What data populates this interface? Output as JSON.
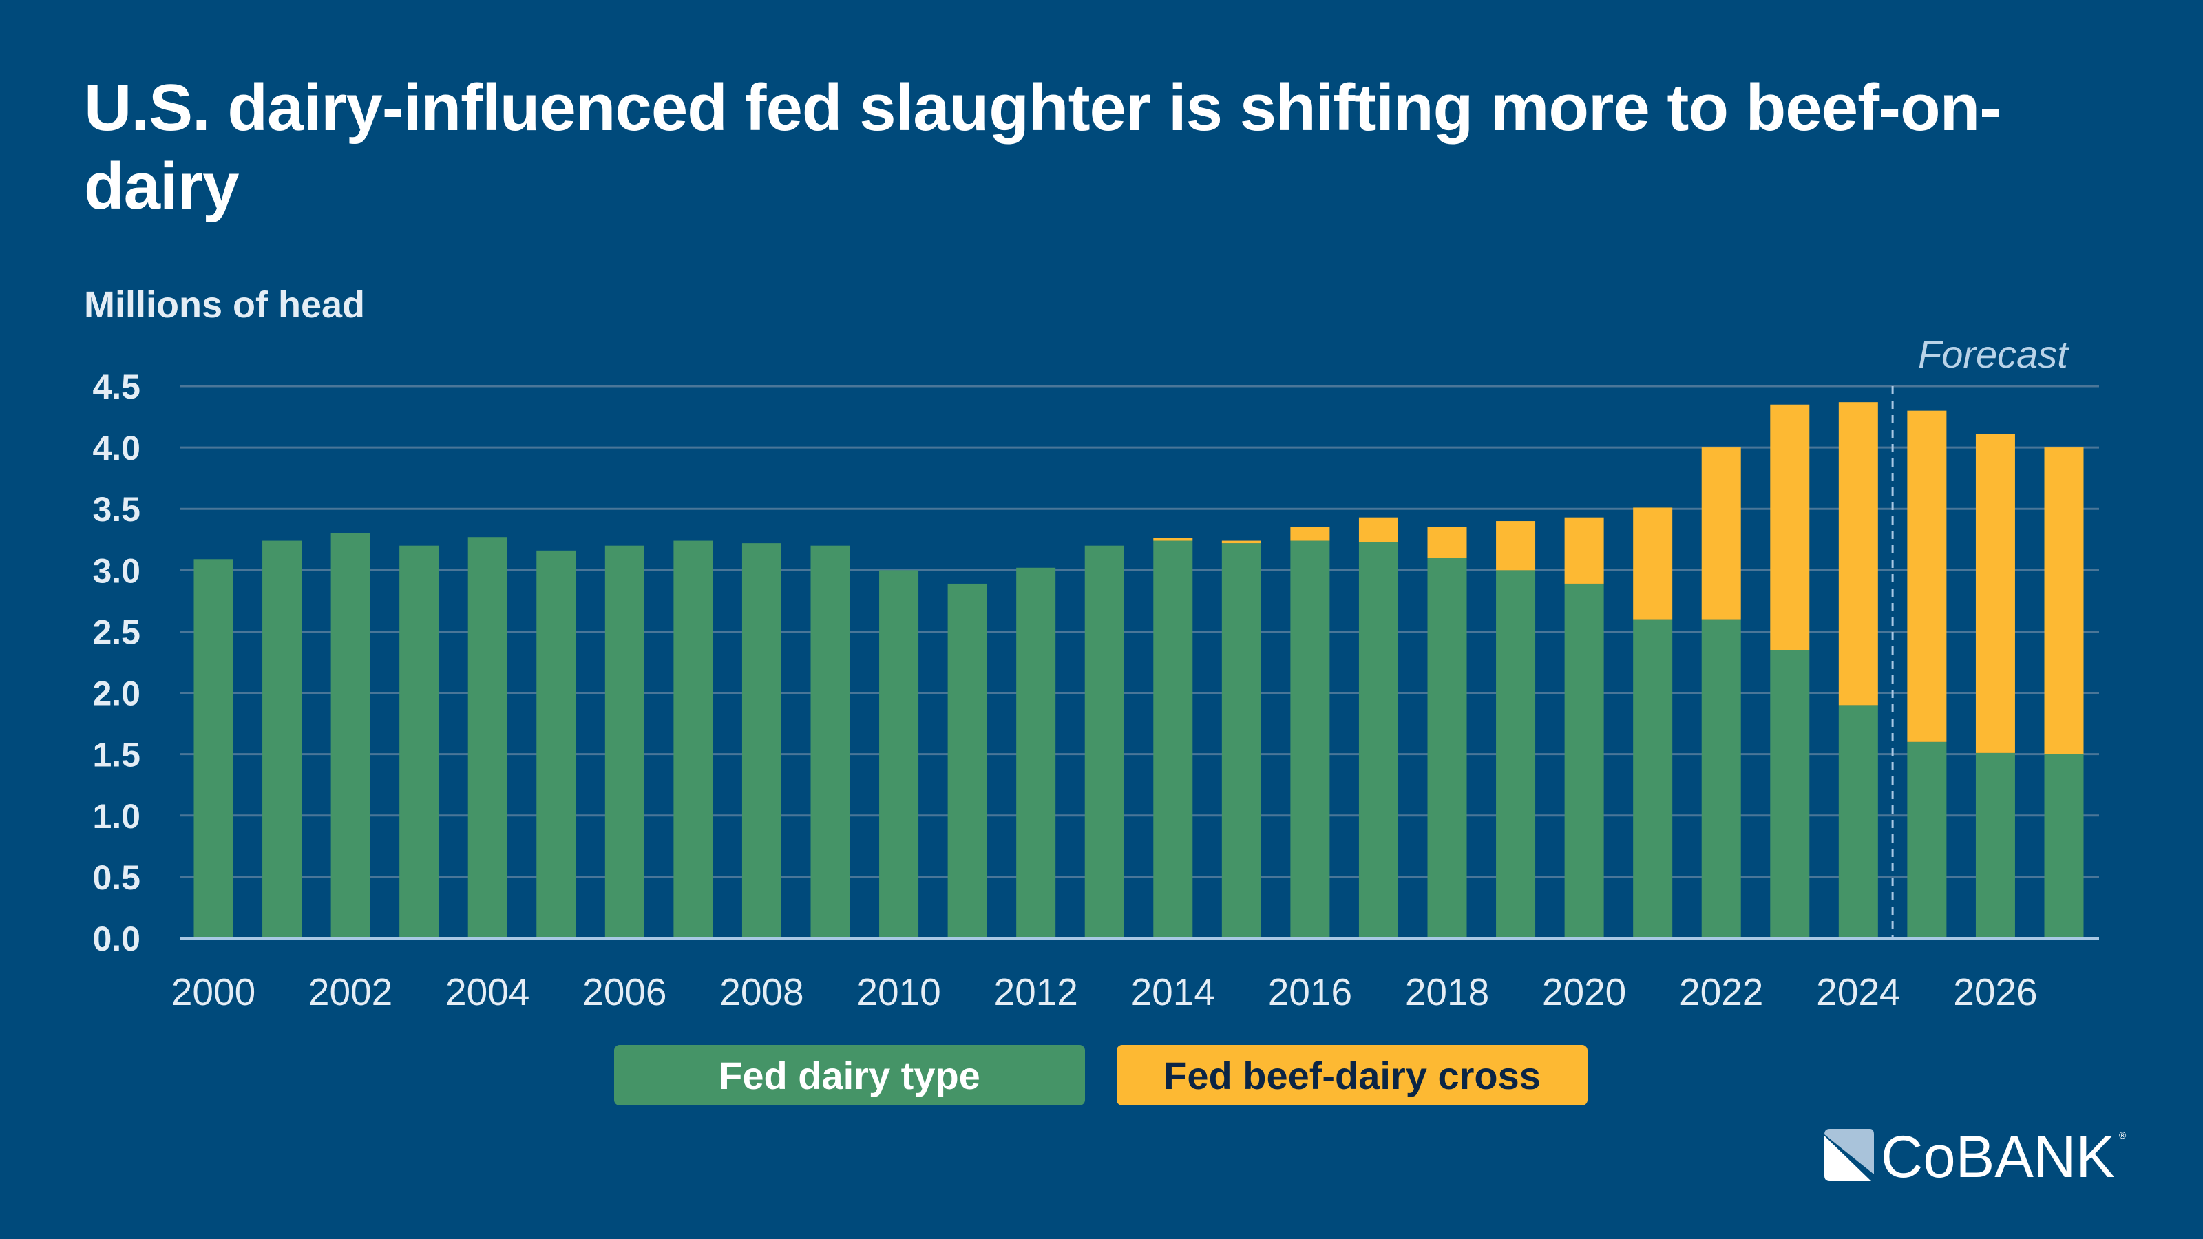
{
  "title": "U.S. dairy-influenced fed slaughter is shifting more to beef-on-dairy",
  "logo_text": "COBANK",
  "colors": {
    "background": "#004a7b",
    "dairy": "#459467",
    "cross": "#fdb933",
    "forecast_line": "#a9c8e4"
  },
  "chart_data": {
    "type": "bar",
    "stacked": true,
    "title": "U.S. dairy-influenced fed slaughter is shifting more to beef-on-dairy",
    "ylabel": "Millions of head",
    "xlabel": "",
    "ylim": [
      0,
      4.5
    ],
    "yticks": [
      "0.0",
      "0.5",
      "1.0",
      "1.5",
      "2.0",
      "2.5",
      "3.0",
      "3.5",
      "4.0",
      "4.5"
    ],
    "grid": true,
    "legend": "bottom",
    "annotation": "Forecast",
    "forecast_starts": 2025,
    "categories": [
      2000,
      2001,
      2002,
      2003,
      2004,
      2005,
      2006,
      2007,
      2008,
      2009,
      2010,
      2011,
      2012,
      2013,
      2014,
      2015,
      2016,
      2017,
      2018,
      2019,
      2020,
      2021,
      2022,
      2023,
      2024,
      2025,
      2026,
      2027
    ],
    "xtick_labels": [
      "2000",
      "2002",
      "2004",
      "2006",
      "2008",
      "2010",
      "2012",
      "2014",
      "2016",
      "2018",
      "2020",
      "2022",
      "2024",
      "2026"
    ],
    "series": [
      {
        "name": "Fed dairy type",
        "color": "#459467",
        "values": [
          3.09,
          3.24,
          3.3,
          3.2,
          3.27,
          3.16,
          3.2,
          3.24,
          3.22,
          3.2,
          3.0,
          2.89,
          3.02,
          3.2,
          3.24,
          3.22,
          3.24,
          3.23,
          3.1,
          3.0,
          2.89,
          2.6,
          2.6,
          2.35,
          1.9,
          1.6,
          1.51,
          1.5
        ]
      },
      {
        "name": "Fed beef-dairy cross",
        "color": "#fdb933",
        "values": [
          0,
          0,
          0,
          0,
          0,
          0,
          0,
          0,
          0,
          0,
          0,
          0,
          0,
          0,
          0.02,
          0.02,
          0.11,
          0.2,
          0.25,
          0.4,
          0.54,
          0.91,
          1.4,
          2.0,
          2.47,
          2.7,
          2.6,
          2.5
        ]
      }
    ]
  }
}
